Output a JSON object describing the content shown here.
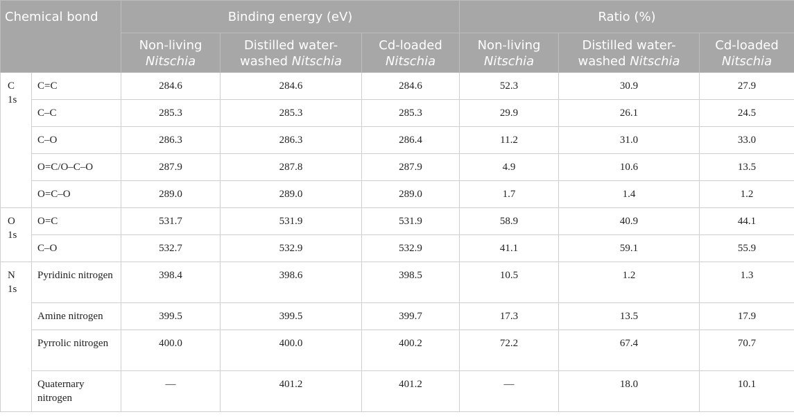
{
  "header": {
    "chemical_bond": "Chemical bond",
    "binding_energy": "Binding energy (eV)",
    "ratio": "Ratio (%)",
    "sub": {
      "non_living_pre": "Non-living",
      "distilled_pre": "Distilled water-",
      "distilled_mid": "washed",
      "cd_loaded_pre": "Cd-loaded",
      "nitschia": "Nitschia"
    }
  },
  "groups": [
    {
      "label_a": "C",
      "label_b": "1s"
    },
    {
      "label_a": "O",
      "label_b": "1s"
    },
    {
      "label_a": "N",
      "label_b": "1s"
    }
  ],
  "rows": [
    [
      "C=C",
      "284.6",
      "284.6",
      "284.6",
      "52.3",
      "30.9",
      "27.9"
    ],
    [
      "C–C",
      "285.3",
      "285.3",
      "285.3",
      "29.9",
      "26.1",
      "24.5"
    ],
    [
      "C–O",
      "286.3",
      "286.3",
      "286.4",
      "11.2",
      "31.0",
      "33.0"
    ],
    [
      "O=C/O–C–O",
      "287.9",
      "287.8",
      "287.9",
      "4.9",
      "10.6",
      "13.5"
    ],
    [
      "O=C–O",
      "289.0",
      "289.0",
      "289.0",
      "1.7",
      "1.4",
      "1.2"
    ],
    [
      "O=C",
      "531.7",
      "531.9",
      "531.9",
      "58.9",
      "40.9",
      "44.1"
    ],
    [
      "C–O",
      "532.7",
      "532.9",
      "532.9",
      "41.1",
      "59.1",
      "55.9"
    ],
    [
      "Pyridinic nitrogen",
      "398.4",
      "398.6",
      "398.5",
      "10.5",
      "1.2",
      "1.3"
    ],
    [
      "Amine nitrogen",
      "399.5",
      "399.5",
      "399.7",
      "17.3",
      "13.5",
      "17.9"
    ],
    [
      "Pyrrolic nitrogen",
      "400.0",
      "400.0",
      "400.2",
      "72.2",
      "67.4",
      "70.7"
    ],
    [
      "Quaternary nitrogen",
      "—",
      "401.2",
      "401.2",
      "—",
      "18.0",
      "10.1"
    ]
  ]
}
